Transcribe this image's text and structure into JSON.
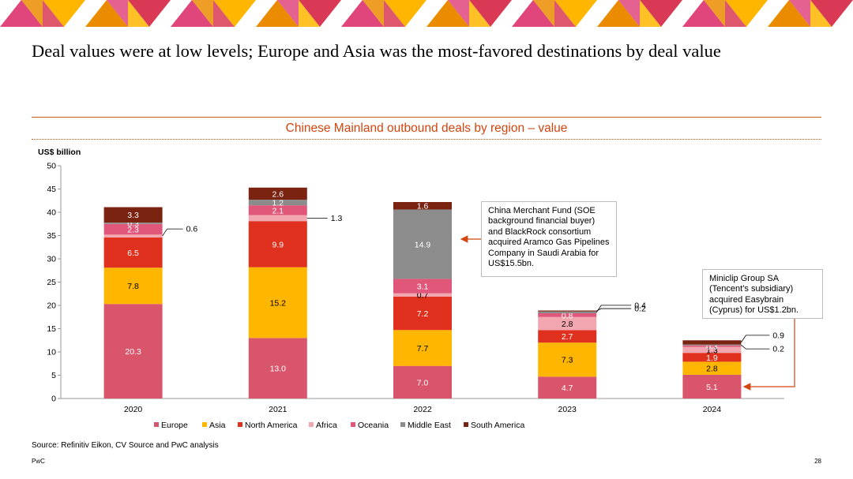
{
  "headline": "Deal values were at low levels; Europe and Asia was the most-favored destinations by deal value",
  "source": "Source: Refinitiv Eikon, CV Source and PwC analysis",
  "brand": "PwC",
  "page_number": "28",
  "banner_colors": [
    "#e0457b",
    "#ffb600",
    "#eb8c00",
    "#d93954"
  ],
  "callouts": [
    {
      "text": "China Merchant Fund (SOE background financial buyer) and BlackRock consortium acquired Aramco Gas Pipelines Company in Saudi Arabia for US$15.5bn.",
      "target_year": "2022",
      "target_region": "Middle East"
    },
    {
      "text": "Miniclip Group SA (Tencent’s subsidiary) acquired Easybrain (Cyprus) for US$1.2bn.",
      "target_year": "2024",
      "target_region": "Europe"
    }
  ],
  "chart_data": {
    "type": "bar",
    "stacked": true,
    "title": "Chinese Mainland outbound deals by region – value",
    "ylabel": "US$ billion",
    "xlabel": "",
    "ylim": [
      0,
      50
    ],
    "yticks": [
      0,
      5,
      10,
      15,
      20,
      25,
      30,
      35,
      40,
      45,
      50
    ],
    "grid": false,
    "legend_position": "bottom",
    "categories": [
      "2020",
      "2021",
      "2022",
      "2023",
      "2024"
    ],
    "series": [
      {
        "name": "Europe",
        "color": "#d9556b",
        "values": [
          20.3,
          13.0,
          7.0,
          4.7,
          5.1
        ]
      },
      {
        "name": "Asia",
        "color": "#ffb600",
        "values": [
          7.8,
          15.2,
          7.7,
          7.3,
          2.8
        ]
      },
      {
        "name": "North America",
        "color": "#e0301e",
        "values": [
          6.5,
          9.9,
          7.2,
          2.7,
          1.9
        ]
      },
      {
        "name": "Africa",
        "color": "#f2a6b0",
        "values": [
          0.6,
          1.3,
          0.7,
          2.8,
          1.3
        ]
      },
      {
        "name": "Oceania",
        "color": "#e0577a",
        "values": [
          2.3,
          2.1,
          3.1,
          0.8,
          0.3
        ]
      },
      {
        "name": "Middle East",
        "color": "#8c8c8c",
        "values": [
          0.3,
          1.2,
          14.9,
          0.4,
          0.2
        ]
      },
      {
        "name": "South America",
        "color": "#7a2310",
        "values": [
          3.3,
          2.6,
          1.6,
          0.2,
          0.9
        ]
      }
    ]
  }
}
